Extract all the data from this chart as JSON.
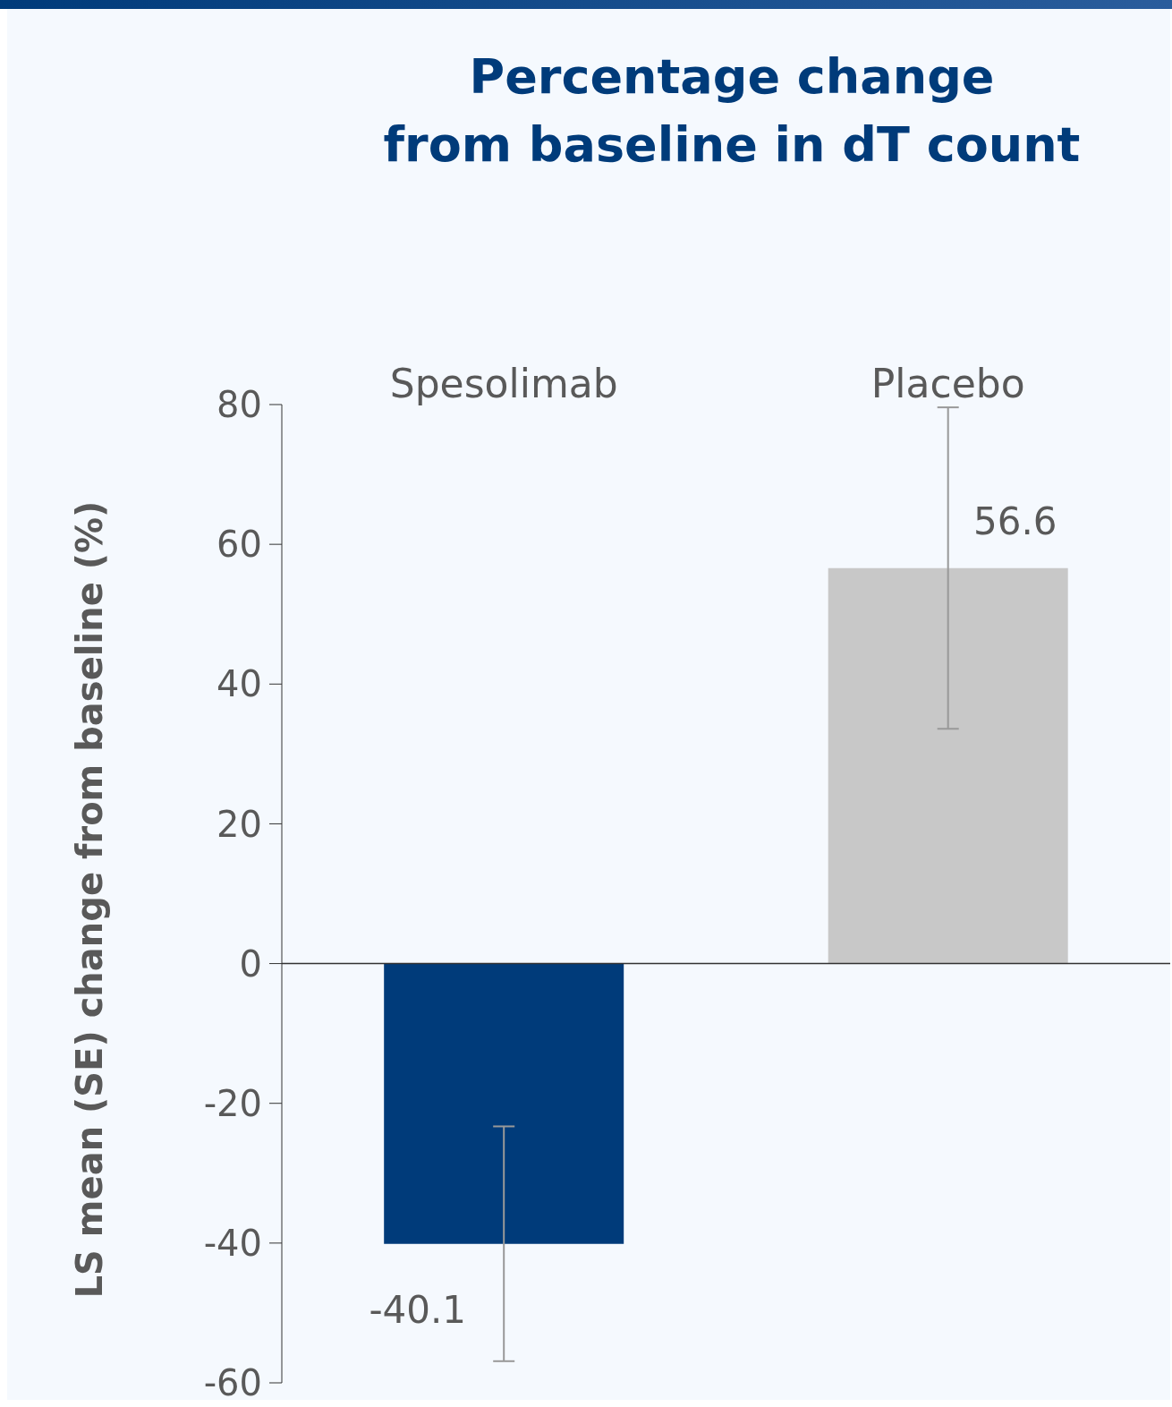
{
  "chart_data": {
    "type": "bar",
    "title": "Percentage change\nfrom baseline in dT count",
    "ylabel": "LS mean (SE) change from baseline (%)",
    "categories": [
      "Spesolimab",
      "Placebo"
    ],
    "values": [
      -40.1,
      56.6
    ],
    "colors": [
      "#003b7a",
      "#c8c8c8"
    ],
    "errors": [
      16.8,
      23.0
    ],
    "data_labels": true,
    "ylim": [
      -60,
      80
    ],
    "yticks": [
      -60,
      -40,
      -20,
      0,
      20,
      40,
      60,
      80
    ],
    "legend": false
  }
}
